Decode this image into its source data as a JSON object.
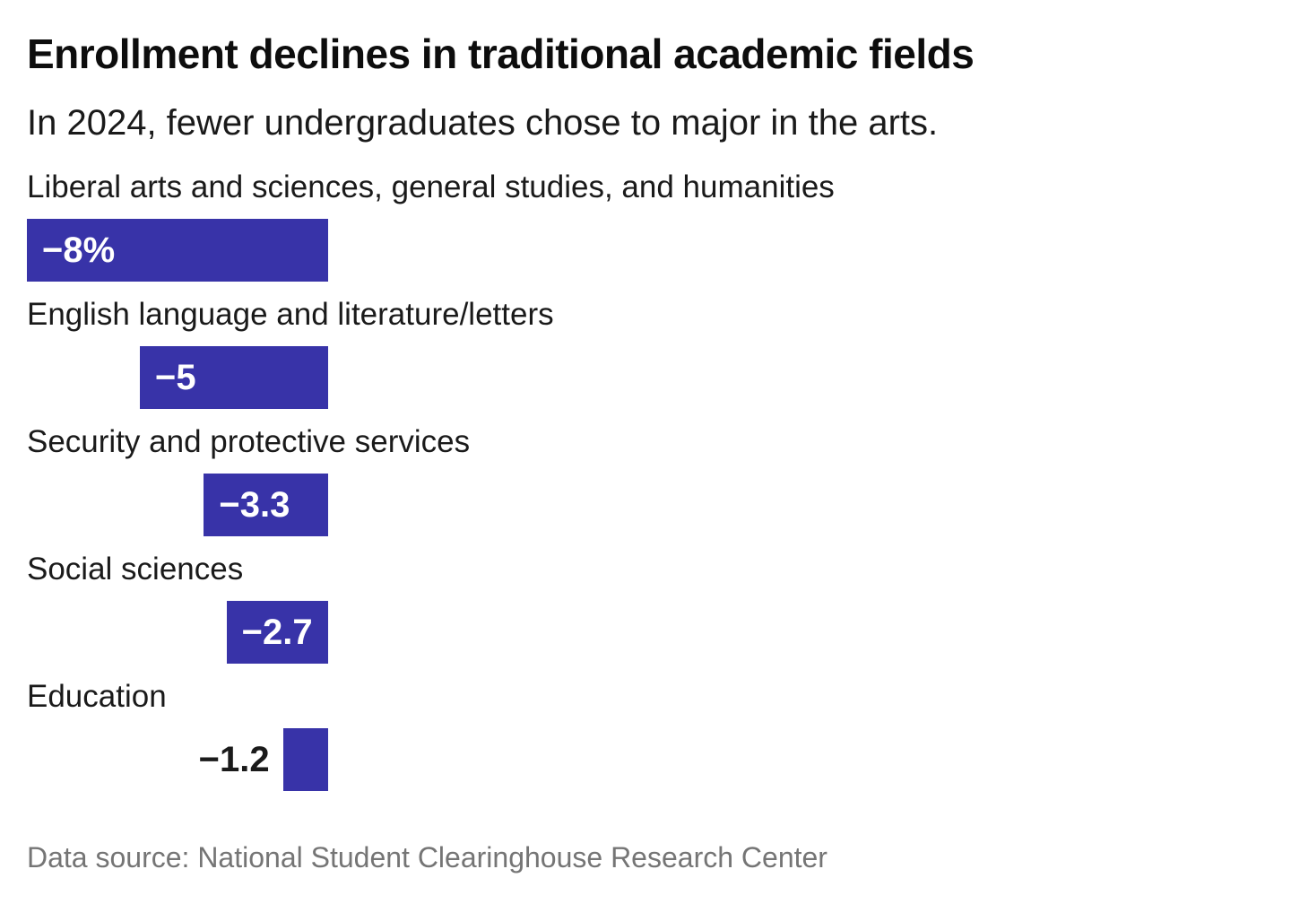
{
  "header": {
    "title": "Enrollment declines in traditional academic fields",
    "subtitle": "In 2024, fewer undergraduates chose to major in the arts."
  },
  "chart_data": {
    "type": "bar",
    "orientation": "horizontal",
    "title": "Enrollment declines in traditional academic fields",
    "subtitle": "In 2024, fewer undergraduates chose to major in the arts.",
    "categories": [
      "Liberal arts and sciences, general studies, and humanities",
      "English language and literature/letters",
      "Security and protective services",
      "Social sciences",
      "Education"
    ],
    "values": [
      -8,
      -5,
      -3.3,
      -2.7,
      -1.2
    ],
    "value_labels": [
      "−8%",
      "−5",
      "−3.3",
      "−2.7",
      "−1.2"
    ],
    "unit": "percent change",
    "xlim": [
      -8,
      0
    ],
    "grid": false,
    "legend": false,
    "bar_color": "#3833a8",
    "inside_label_color": "#ffffff",
    "outside_label_color": "#1a1a1a"
  },
  "footer": {
    "source": "Data source: National Student Clearinghouse Research Center"
  }
}
